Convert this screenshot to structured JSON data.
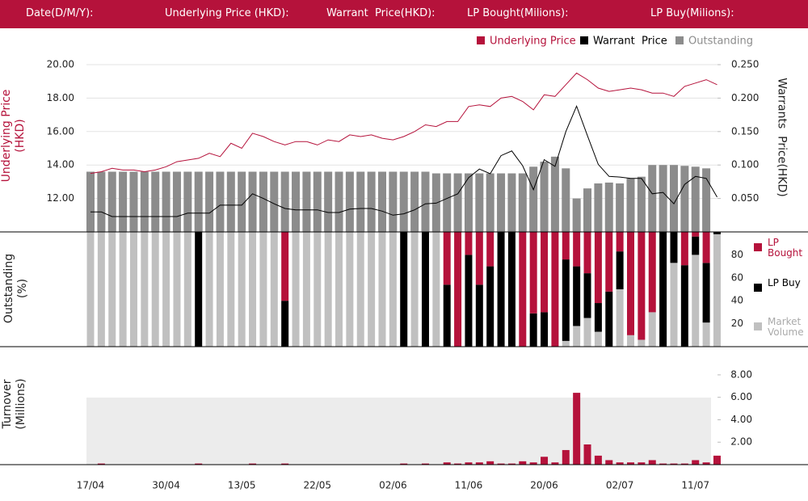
{
  "header": {
    "labels": [
      "Date(D/M/Y):",
      "Underlying Price (HKD):",
      "Warrant  Price(HKD):",
      "LP Bought(Milions):",
      "LP Buy(Milions):"
    ]
  },
  "chart_data": [
    {
      "type": "combo",
      "legend": "top-right",
      "grid": true,
      "ylabel": "Underlying Price (HKD)",
      "y2label": "Warrants  Price(HKD)",
      "ylim": [
        10,
        20
      ],
      "yticks": [
        {
          "value": 12,
          "label": "12.00"
        },
        {
          "value": 14,
          "label": "14.00"
        },
        {
          "value": 16,
          "label": "16.00"
        },
        {
          "value": 18,
          "label": "18.00"
        },
        {
          "value": 20,
          "label": "20.00"
        }
      ],
      "y2lim": [
        0,
        0.25
      ],
      "y2ticks": [
        {
          "value": 0.05,
          "label": "0.050"
        },
        {
          "value": 0.1,
          "label": "0.100"
        },
        {
          "value": 0.15,
          "label": "0.150"
        },
        {
          "value": 0.2,
          "label": "0.200"
        },
        {
          "value": 0.25,
          "label": "0.250"
        }
      ],
      "series": [
        {
          "name": "Underlying Price",
          "color": "#b5123b",
          "kind": "line",
          "values": [
            13.5,
            13.6,
            13.8,
            13.7,
            13.7,
            13.6,
            13.7,
            13.9,
            14.2,
            14.3,
            14.4,
            14.7,
            14.5,
            15.3,
            15.0,
            15.9,
            15.7,
            15.4,
            15.2,
            15.4,
            15.4,
            15.2,
            15.5,
            15.4,
            15.8,
            15.7,
            15.8,
            15.6,
            15.5,
            15.7,
            16.0,
            16.4,
            16.3,
            16.6,
            16.6,
            17.5,
            17.6,
            17.5,
            18.0,
            18.1,
            17.8,
            17.3,
            18.2,
            18.1,
            18.8,
            19.5,
            19.1,
            18.6,
            18.4,
            18.5,
            18.6,
            18.5,
            18.3,
            18.3,
            18.1,
            18.7,
            18.9,
            19.1,
            18.8
          ]
        },
        {
          "name": "Warrant  Price",
          "color": "#000000",
          "kind": "line",
          "axis": "y2",
          "values": [
            0.03,
            0.03,
            0.023,
            0.023,
            0.023,
            0.023,
            0.023,
            0.023,
            0.023,
            0.028,
            0.028,
            0.028,
            0.04,
            0.04,
            0.04,
            0.057,
            0.05,
            0.042,
            0.035,
            0.033,
            0.033,
            0.033,
            0.029,
            0.029,
            0.034,
            0.035,
            0.035,
            0.031,
            0.025,
            0.027,
            0.033,
            0.042,
            0.043,
            0.05,
            0.057,
            0.081,
            0.094,
            0.087,
            0.114,
            0.121,
            0.099,
            0.063,
            0.108,
            0.098,
            0.15,
            0.188,
            0.144,
            0.101,
            0.083,
            0.082,
            0.08,
            0.08,
            0.057,
            0.059,
            0.042,
            0.071,
            0.083,
            0.08,
            0.052
          ]
        },
        {
          "name": "Outstanding",
          "color": "#8c8c8c",
          "kind": "bar",
          "values": [
            13.6,
            13.6,
            13.6,
            13.6,
            13.6,
            13.6,
            13.6,
            13.6,
            13.6,
            13.6,
            13.6,
            13.6,
            13.6,
            13.6,
            13.6,
            13.6,
            13.6,
            13.6,
            13.6,
            13.6,
            13.6,
            13.6,
            13.6,
            13.6,
            13.6,
            13.6,
            13.6,
            13.6,
            13.6,
            13.6,
            13.6,
            13.6,
            13.5,
            13.5,
            13.5,
            13.5,
            13.5,
            13.5,
            13.5,
            13.5,
            13.5,
            13.9,
            14.2,
            14.5,
            13.8,
            12.0,
            12.6,
            12.9,
            12.95,
            12.9,
            13.2,
            13.3,
            14.0,
            14.0,
            14.0,
            13.95,
            13.9,
            13.8,
            null
          ]
        }
      ]
    },
    {
      "type": "stacked_bar",
      "ylabel": "Outstanding (%)",
      "ylim": [
        0,
        100
      ],
      "yticks": [
        20,
        40,
        60,
        80
      ],
      "series": [
        {
          "name": "LP Bought",
          "color": "#b5123b",
          "values": [
            0,
            0,
            0,
            0,
            0,
            0,
            0,
            0,
            0,
            0,
            0,
            0,
            0,
            0,
            0,
            0,
            0,
            0,
            60,
            0,
            0,
            0,
            0,
            0,
            0,
            0,
            0,
            0,
            0,
            0,
            0,
            0,
            0,
            46,
            100,
            20,
            46,
            30,
            0,
            0,
            100,
            71,
            70,
            100,
            24,
            30,
            36,
            62,
            52,
            17,
            90,
            94,
            70,
            0,
            0,
            29,
            4,
            27,
            0
          ]
        },
        {
          "name": "LP Buy",
          "color": "#000000",
          "values": [
            0,
            0,
            0,
            0,
            0,
            0,
            0,
            0,
            0,
            0,
            100,
            0,
            0,
            0,
            0,
            0,
            0,
            0,
            40,
            0,
            0,
            0,
            0,
            0,
            0,
            0,
            0,
            0,
            0,
            100,
            0,
            100,
            0,
            54,
            0,
            80,
            54,
            70,
            100,
            100,
            0,
            29,
            30,
            0,
            71,
            52,
            39,
            25,
            48,
            33,
            0,
            0,
            0,
            100,
            27,
            71,
            16,
            52,
            2
          ]
        },
        {
          "name": "Market Volume",
          "color": "#c0c0c0",
          "values": [
            100,
            100,
            100,
            100,
            100,
            100,
            100,
            100,
            100,
            100,
            0,
            100,
            100,
            100,
            100,
            100,
            100,
            100,
            0,
            100,
            100,
            100,
            100,
            100,
            100,
            100,
            100,
            100,
            100,
            0,
            100,
            0,
            100,
            0,
            0,
            0,
            0,
            0,
            0,
            0,
            0,
            0,
            0,
            0,
            5,
            18,
            25,
            13,
            0,
            50,
            10,
            6,
            30,
            0,
            73,
            0,
            80,
            21,
            98
          ]
        }
      ]
    },
    {
      "type": "bar",
      "ylabel": "Turnover (Millions)",
      "color": "#b5123b",
      "ylim": [
        0,
        9
      ],
      "yticks": [
        {
          "value": 2,
          "label": "2.00"
        },
        {
          "value": 4,
          "label": "4.00"
        },
        {
          "value": 6,
          "label": "6.00"
        },
        {
          "value": 8,
          "label": "8.00"
        }
      ],
      "categories": [
        "17/04",
        null,
        null,
        null,
        null,
        null,
        null,
        "30/04",
        null,
        null,
        null,
        null,
        null,
        null,
        "13/05",
        null,
        null,
        null,
        null,
        null,
        null,
        "22/05",
        null,
        null,
        null,
        null,
        null,
        null,
        "02/06",
        null,
        null,
        null,
        null,
        null,
        null,
        "11/06",
        null,
        null,
        null,
        null,
        null,
        null,
        "20/06",
        null,
        null,
        null,
        null,
        null,
        null,
        "02/07",
        null,
        null,
        null,
        null,
        null,
        null,
        "11/07",
        null,
        null
      ],
      "values": [
        0,
        0.1,
        0,
        0,
        0,
        0,
        0,
        0,
        0,
        0,
        0.1,
        0,
        0,
        0,
        0,
        0.1,
        0,
        0,
        0.1,
        0,
        0,
        0,
        0,
        0,
        0,
        0,
        0,
        0,
        0,
        0.1,
        0,
        0.1,
        0,
        0.2,
        0.1,
        0.2,
        0.2,
        0.3,
        0.1,
        0.1,
        0.3,
        0.2,
        0.7,
        0.2,
        1.3,
        6.4,
        1.8,
        0.8,
        0.4,
        0.2,
        0.2,
        0.2,
        0.4,
        0.1,
        0.1,
        0.1,
        0.4,
        0.2,
        0.8
      ]
    }
  ]
}
